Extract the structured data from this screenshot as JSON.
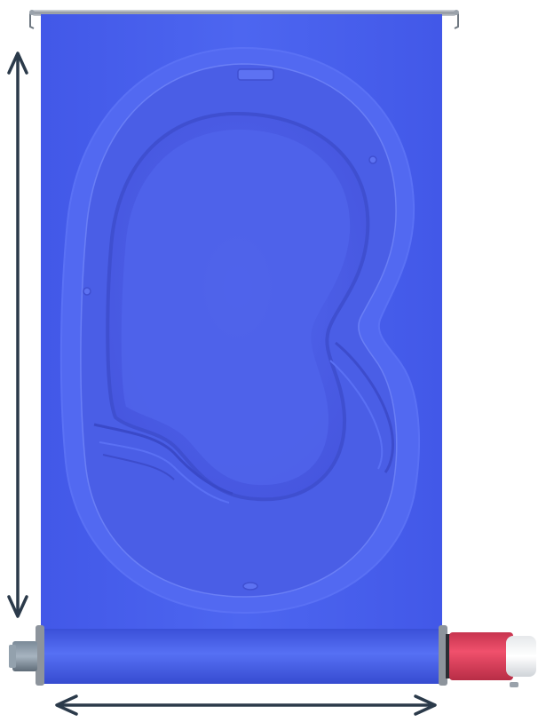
{
  "scene": {
    "subject": "pool-cover-roll-with-kidney-pool",
    "colors": {
      "cover": "#4a63ef",
      "cover_dark": "#3d52d6",
      "pool_shell": "#5067f2",
      "pool_interior": "#4f62e8",
      "pool_rim": "#4e5ad8",
      "arrow": "#2b3a4a",
      "motor_red": "#e9415f",
      "metal": "#b9bec4",
      "metal_dark": "#6e7780"
    },
    "icons": {
      "vertical_dimension": "vertical-double-arrow-icon",
      "horizontal_dimension": "horizontal-double-arrow-icon"
    }
  }
}
